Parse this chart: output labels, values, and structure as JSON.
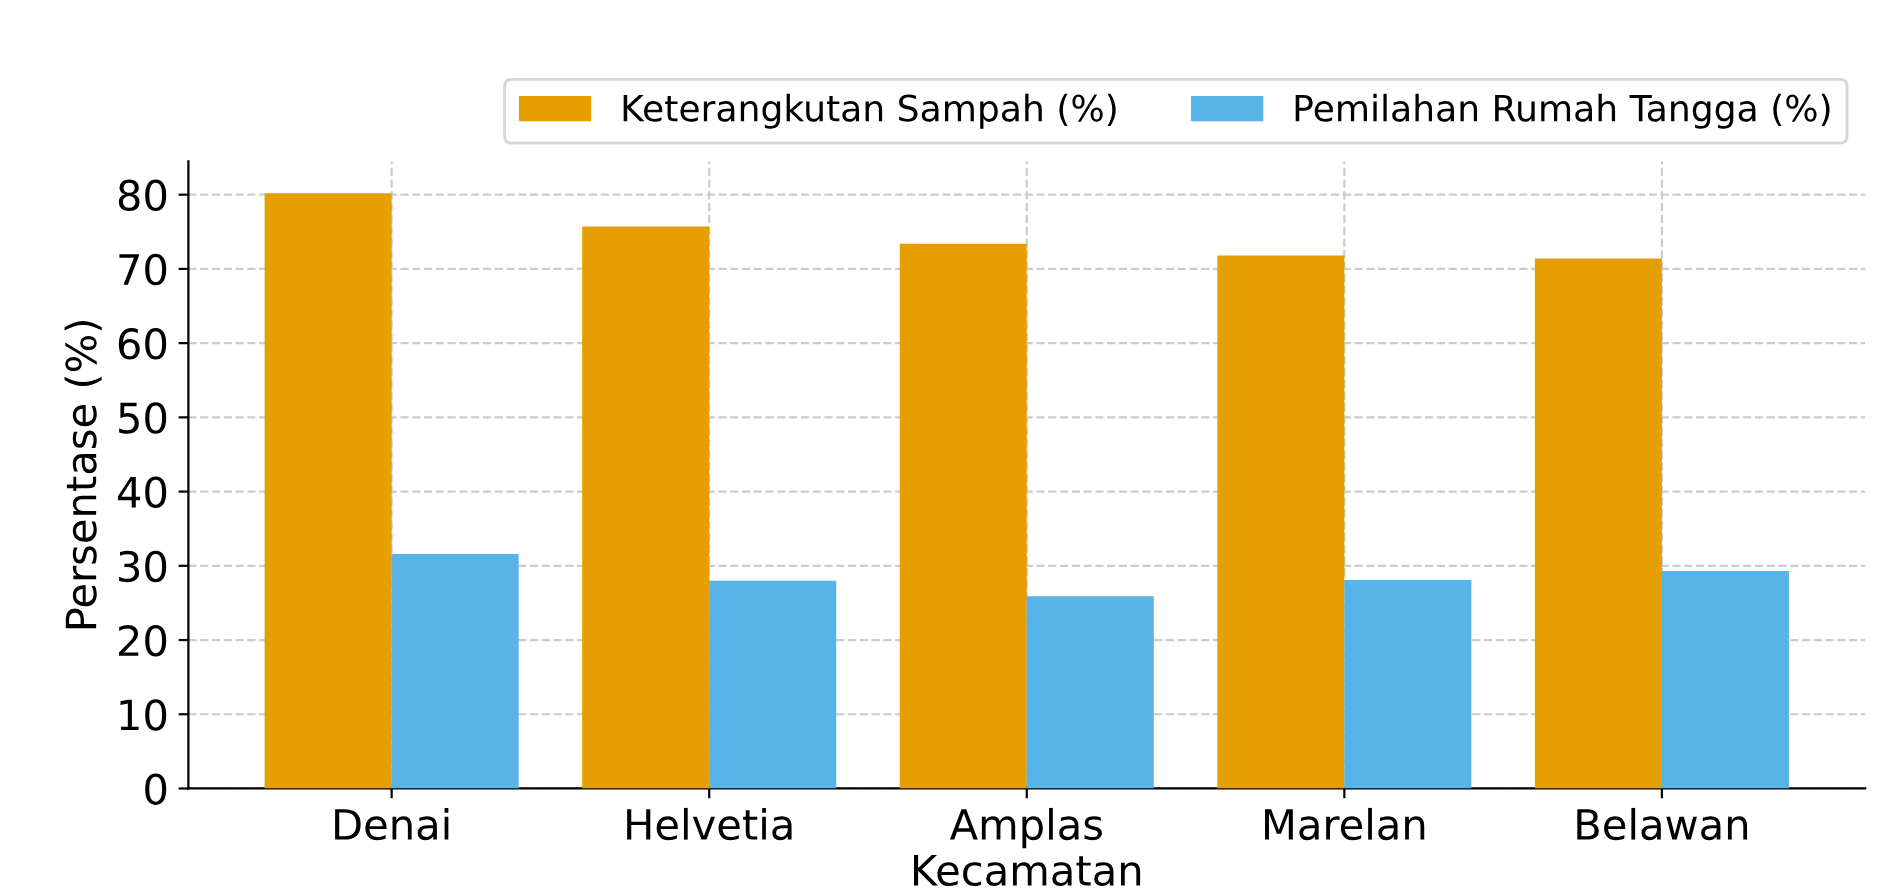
{
  "chart_data": {
    "type": "bar",
    "xlabel": "Kecamatan",
    "ylabel": "Persentase (%)",
    "categories": [
      "Denai",
      "Helvetia",
      "Amplas",
      "Marelan",
      "Belawan"
    ],
    "series": [
      {
        "name": "Keterangkutan Sampah (%)",
        "color": "#e69f00",
        "values": [
          80.2,
          75.7,
          73.4,
          71.8,
          71.4
        ]
      },
      {
        "name": "Pemilahan Rumah Tangga (%)",
        "color": "#56b4e9",
        "values": [
          31.6,
          28.0,
          25.9,
          28.1,
          29.3
        ]
      }
    ],
    "ylim": [
      0,
      84.5
    ],
    "yticks": [
      0,
      10,
      20,
      30,
      40,
      50,
      60,
      70,
      80
    ],
    "grid": true,
    "legend": "top right"
  }
}
